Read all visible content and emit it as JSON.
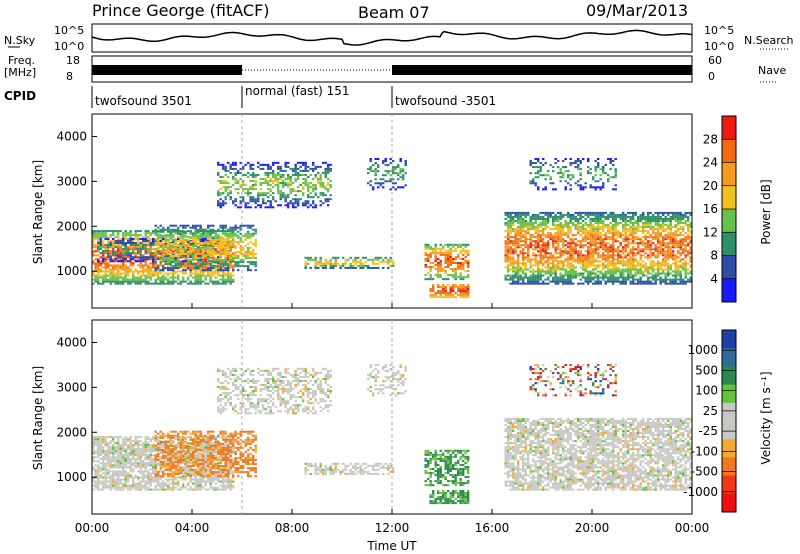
{
  "header": {
    "station": "Prince George (fitACF)",
    "beam": "Beam 07",
    "date": "09/Mar/2013"
  },
  "summary_panels": {
    "nsky": {
      "label": "N.Sky",
      "ticks": [
        "10^5",
        "10^0"
      ]
    },
    "nsearch": {
      "label": "N.Search",
      "ticks": [
        "10^5",
        "10^0"
      ]
    },
    "freq": {
      "label_top": "Freq.",
      "label_bottom": "[MHz]",
      "ticks": [
        "18",
        "8"
      ]
    },
    "nave": {
      "label": "Nave",
      "ticks": [
        "60",
        "0"
      ]
    },
    "cpid": {
      "label": "CPID",
      "segments": [
        {
          "name": "twofsound 3501",
          "start_hour": 0,
          "end_hour": 6
        },
        {
          "name": "normal (fast) 151",
          "start_hour": 6,
          "end_hour": 12
        },
        {
          "name": "twofsound -3501",
          "start_hour": 12,
          "end_hour": 24
        }
      ]
    }
  },
  "axes": {
    "x_label": "Time UT",
    "x_ticks": [
      "00:00",
      "04:00",
      "08:00",
      "12:00",
      "16:00",
      "20:00",
      "00:00"
    ],
    "y_label": "Slant Range [km]",
    "y_ticks": [
      "1000",
      "2000",
      "3000",
      "4000"
    ]
  },
  "colorbars": {
    "power": {
      "label": "Power [dB]",
      "ticks": [
        "28",
        "24",
        "20",
        "16",
        "12",
        "8",
        "4"
      ]
    },
    "velocity": {
      "label": "Velocity [m s⁻¹]",
      "ticks": [
        "1000",
        "500",
        "100",
        "25",
        "-25",
        "-100",
        "-500",
        "-1000"
      ]
    }
  },
  "colors": {
    "power_scale": [
      "#1a1aff",
      "#2c4ea8",
      "#2e8f6b",
      "#66c24a",
      "#f2c020",
      "#f59a1a",
      "#f26a10",
      "#ee1a10"
    ],
    "velocity_scale": [
      "#1c3fa8",
      "#2f6c9a",
      "#2d8a4e",
      "#62c43c",
      "#c8c8c4",
      "#c8c8c4",
      "#f5a830",
      "#f07820",
      "#ee3818",
      "#ee1010"
    ],
    "ground_scatter": "#c4c4c0"
  },
  "chart_data": {
    "type": "heatmap",
    "x_range_hours": [
      0,
      24
    ],
    "y_range_km": [
      180,
      4500
    ],
    "cpid_boundaries_hours": [
      6,
      12
    ],
    "panels": [
      "power",
      "velocity"
    ]
  }
}
